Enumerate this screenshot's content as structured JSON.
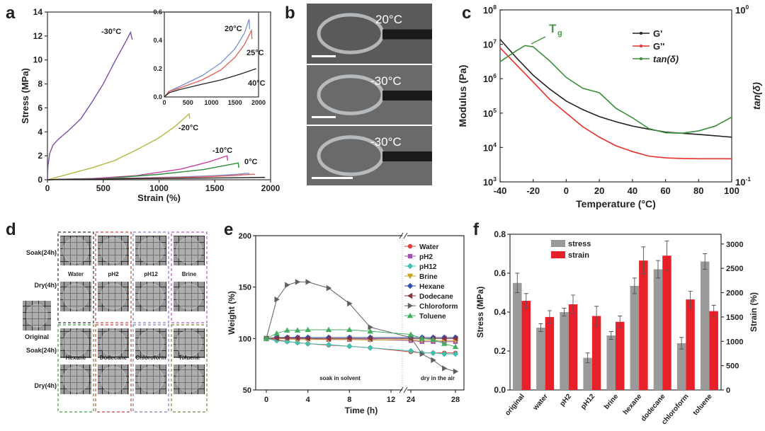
{
  "panel_labels": [
    "a",
    "b",
    "c",
    "d",
    "e",
    "f"
  ],
  "chart_data": [
    {
      "id": "a",
      "type": "line",
      "xlabel": "Strain (%)",
      "ylabel": "Stress (MPa)",
      "xlim": [
        0,
        2000
      ],
      "ylim": [
        0,
        14
      ],
      "xticks": [
        0,
        500,
        1000,
        1500,
        2000
      ],
      "yticks": [
        0,
        2,
        4,
        6,
        8,
        10,
        12,
        14
      ],
      "series": [
        {
          "name": "-30°C",
          "color": "#7b4ea3",
          "points": [
            [
              0,
              0
            ],
            [
              5,
              1.2
            ],
            [
              20,
              2.2
            ],
            [
              50,
              2.9
            ],
            [
              100,
              3.4
            ],
            [
              200,
              4.2
            ],
            [
              300,
              5.1
            ],
            [
              400,
              6.5
            ],
            [
              500,
              8.0
            ],
            [
              600,
              9.8
            ],
            [
              700,
              11.5
            ],
            [
              745,
              12.3
            ],
            [
              760,
              11.7
            ]
          ]
        },
        {
          "name": "-20°C",
          "color": "#b7b947",
          "points": [
            [
              0,
              0
            ],
            [
              200,
              0.5
            ],
            [
              400,
              1.0
            ],
            [
              600,
              1.6
            ],
            [
              800,
              2.5
            ],
            [
              1000,
              3.5
            ],
            [
              1150,
              4.5
            ],
            [
              1270,
              5.5
            ],
            [
              1275,
              5.1
            ]
          ]
        },
        {
          "name": "-10°C",
          "color": "#c4429c",
          "points": [
            [
              0,
              0
            ],
            [
              400,
              0.1
            ],
            [
              800,
              0.35
            ],
            [
              1200,
              0.9
            ],
            [
              1450,
              1.5
            ],
            [
              1610,
              2.0
            ],
            [
              1615,
              1.6
            ]
          ]
        },
        {
          "name": "0°C",
          "color": "#2e8b3a",
          "points": [
            [
              0,
              0
            ],
            [
              500,
              0.1
            ],
            [
              1000,
              0.45
            ],
            [
              1400,
              0.85
            ],
            [
              1710,
              1.4
            ],
            [
              1715,
              1.0
            ]
          ]
        },
        {
          "name": "20°C",
          "color": "#7c90d0",
          "points": [
            [
              0,
              0
            ],
            [
              100,
              0.04
            ],
            [
              300,
              0.07
            ],
            [
              800,
              0.15
            ],
            [
              1200,
              0.24
            ],
            [
              1500,
              0.34
            ],
            [
              1700,
              0.45
            ],
            [
              1800,
              0.55
            ],
            [
              1810,
              0.48
            ]
          ]
        },
        {
          "name": "25°C",
          "color": "#e0605a",
          "points": [
            [
              0,
              0
            ],
            [
              100,
              0.04
            ],
            [
              300,
              0.06
            ],
            [
              800,
              0.12
            ],
            [
              1200,
              0.19
            ],
            [
              1500,
              0.28
            ],
            [
              1700,
              0.37
            ],
            [
              1850,
              0.47
            ],
            [
              1860,
              0.41
            ]
          ]
        },
        {
          "name": "40°C",
          "color": "#222222",
          "points": [
            [
              0,
              0
            ],
            [
              100,
              0.03
            ],
            [
              300,
              0.05
            ],
            [
              800,
              0.09
            ],
            [
              1200,
              0.12
            ],
            [
              1600,
              0.16
            ],
            [
              1950,
              0.2
            ]
          ]
        }
      ],
      "inset": {
        "xlim": [
          0,
          2000
        ],
        "ylim": [
          0,
          0.6
        ],
        "xticks": [
          0,
          500,
          1000,
          1500,
          2000
        ],
        "yticks": [
          "0.0",
          "0.2",
          "0.4",
          "0.6"
        ],
        "series_names": [
          "20°C",
          "25°C",
          "40°C"
        ]
      },
      "annotations": [
        "-30°C",
        "-20°C",
        "-10°C",
        "0°C",
        "20°C",
        "25°C",
        "40°C"
      ]
    },
    {
      "id": "c",
      "type": "line",
      "xlabel": "Temperature (°C)",
      "ylabel": "Modulus (Pa)",
      "y2label": "tan(δ)",
      "xlim": [
        -40,
        100
      ],
      "ylim": [
        1000,
        100000000
      ],
      "y2lim": [
        0.1,
        1
      ],
      "yscale": "log",
      "xticks": [
        -40,
        -20,
        0,
        20,
        40,
        60,
        80,
        100
      ],
      "yticks": [
        "10^3",
        "10^4",
        "10^5",
        "10^6",
        "10^7",
        "10^8"
      ],
      "y2ticks": [
        "10^-1",
        "10^0"
      ],
      "legend_position": "top-right",
      "annotation": "Tg",
      "series": [
        {
          "name": "G'",
          "color": "#222222",
          "axis": "left",
          "x": [
            -40,
            -30,
            -20,
            -10,
            0,
            10,
            20,
            30,
            40,
            50,
            60,
            80,
            100
          ],
          "y": [
            14000000,
            4000000,
            1260000,
            500000,
            224000,
            126000,
            79000,
            56000,
            42000,
            34000,
            28000,
            24000,
            20000
          ]
        },
        {
          "name": "G''",
          "color": "#e8302a",
          "axis": "left",
          "x": [
            -40,
            -30,
            -20,
            -10,
            0,
            10,
            20,
            30,
            40,
            50,
            60,
            70,
            80,
            100
          ],
          "y": [
            7900000,
            2500000,
            800000,
            250000,
            100000,
            40000,
            20000,
            11200,
            7600,
            5600,
            5000,
            4800,
            4700,
            4700
          ]
        },
        {
          "name": "tan(δ)",
          "color": "#3a8f3a",
          "axis": "right",
          "x": [
            -40,
            -30,
            -25,
            -20,
            -10,
            0,
            10,
            20,
            30,
            40,
            50,
            60,
            70,
            80,
            90,
            100
          ],
          "y": [
            0.5,
            0.58,
            0.62,
            0.61,
            0.505,
            0.405,
            0.35,
            0.33,
            0.268,
            0.236,
            0.204,
            0.193,
            0.192,
            0.198,
            0.211,
            0.238
          ]
        }
      ]
    },
    {
      "id": "e",
      "type": "line",
      "xlabel": "Time (h)",
      "ylabel": "Weight (%)",
      "ylim": [
        50,
        200
      ],
      "yticks": [
        50,
        100,
        150,
        200
      ],
      "xticks": [
        0,
        4,
        8,
        12,
        24,
        28
      ],
      "x_break": [
        13,
        23
      ],
      "region_labels": [
        "soak in solvent",
        "dry in the air"
      ],
      "legend_position": "top-right",
      "x": [
        0,
        1,
        2,
        3,
        4,
        6,
        8,
        10,
        24,
        25,
        26,
        27,
        28
      ],
      "series": [
        {
          "name": "Water",
          "color": "#e0403a",
          "marker": "circle",
          "values": [
            100,
            99,
            97,
            96,
            95,
            93.5,
            92.5,
            91,
            87,
            86,
            86,
            86,
            86
          ]
        },
        {
          "name": "pH2",
          "color": "#a050b0",
          "marker": "square",
          "values": [
            100,
            100,
            100,
            100,
            100,
            99,
            99,
            99,
            98,
            97,
            97,
            97,
            97
          ]
        },
        {
          "name": "pH12",
          "color": "#40c0b0",
          "marker": "diamond",
          "values": [
            100,
            98,
            97,
            96,
            95,
            94,
            92.5,
            91,
            88,
            86,
            86,
            85,
            85
          ]
        },
        {
          "name": "Brine",
          "color": "#d0a020",
          "marker": "triangle-down",
          "values": [
            100,
            100,
            99.5,
            99,
            99,
            99,
            99,
            98.5,
            99,
            98,
            98,
            98,
            98
          ]
        },
        {
          "name": "Hexane",
          "color": "#3050b0",
          "marker": "diamond",
          "values": [
            100,
            101,
            101,
            101,
            101,
            101,
            101,
            101,
            101,
            101,
            101,
            101,
            101
          ]
        },
        {
          "name": "Dodecane",
          "color": "#8a3040",
          "marker": "triangle-left",
          "values": [
            100,
            100.5,
            100.5,
            100.5,
            100,
            100,
            100,
            100,
            100,
            100,
            100,
            100,
            100
          ]
        },
        {
          "name": "Chloroform",
          "color": "#606060",
          "marker": "triangle-right",
          "values": [
            100,
            138,
            152,
            155,
            155,
            149,
            134,
            111,
            101,
            85,
            79,
            71,
            68
          ]
        },
        {
          "name": "Toluene",
          "color": "#40b060",
          "marker": "triangle-up",
          "values": [
            100,
            105,
            108,
            108,
            108.5,
            108.5,
            108.5,
            107,
            104,
            100,
            99,
            95,
            92
          ]
        }
      ]
    },
    {
      "id": "f",
      "type": "bar",
      "ylabel": "Stress (MPa)",
      "y2label": "Strain (%)",
      "ylim": [
        0,
        0.8
      ],
      "y2lim": [
        0,
        3200
      ],
      "yticks": [
        "0.0",
        "0.2",
        "0.4",
        "0.6",
        "0.8"
      ],
      "y2ticks": [
        0,
        500,
        1000,
        1500,
        2000,
        2500,
        3000
      ],
      "legend_position": "top-left",
      "categories": [
        "original",
        "water",
        "pH2",
        "pH12",
        "brine",
        "hexane",
        "dodecane",
        "chloroform",
        "toluene"
      ],
      "series": [
        {
          "name": "stress",
          "color": "#9a9a9a",
          "axis": "left",
          "values": [
            0.55,
            0.32,
            0.4,
            0.165,
            0.28,
            0.535,
            0.62,
            0.24,
            0.66
          ],
          "errors": [
            0.05,
            0.02,
            0.02,
            0.025,
            0.02,
            0.04,
            0.045,
            0.03,
            0.04
          ]
        },
        {
          "name": "strain",
          "color": "#e8202a",
          "axis": "right",
          "values": [
            1832,
            1500,
            1760,
            1520,
            1400,
            2660,
            2760,
            1860,
            1620
          ],
          "errors": [
            150,
            130,
            190,
            200,
            120,
            280,
            300,
            170,
            120
          ]
        }
      ]
    }
  ],
  "panel_b": {
    "photos": [
      {
        "label": "20°C"
      },
      {
        "label": "-30°C"
      },
      {
        "label": "-30°C"
      }
    ]
  },
  "panel_d": {
    "row_labels": [
      "Soak(24h)",
      "Dry(4h)",
      "Soak(24h)",
      "Dry(4h)"
    ],
    "original_label": "Original",
    "groups": [
      {
        "name": "Water",
        "color": "#333333"
      },
      {
        "name": "pH2",
        "color": "#d04040"
      },
      {
        "name": "pH12",
        "color": "#8080c0"
      },
      {
        "name": "Brine",
        "color": "#c050c0"
      },
      {
        "name": "Hexane",
        "color": "#40a040"
      },
      {
        "name": "Dodecane",
        "color": "#d04040"
      },
      {
        "name": "Chloroform",
        "color": "#8080c0"
      },
      {
        "name": "Toluene",
        "color": "#808040"
      }
    ]
  }
}
